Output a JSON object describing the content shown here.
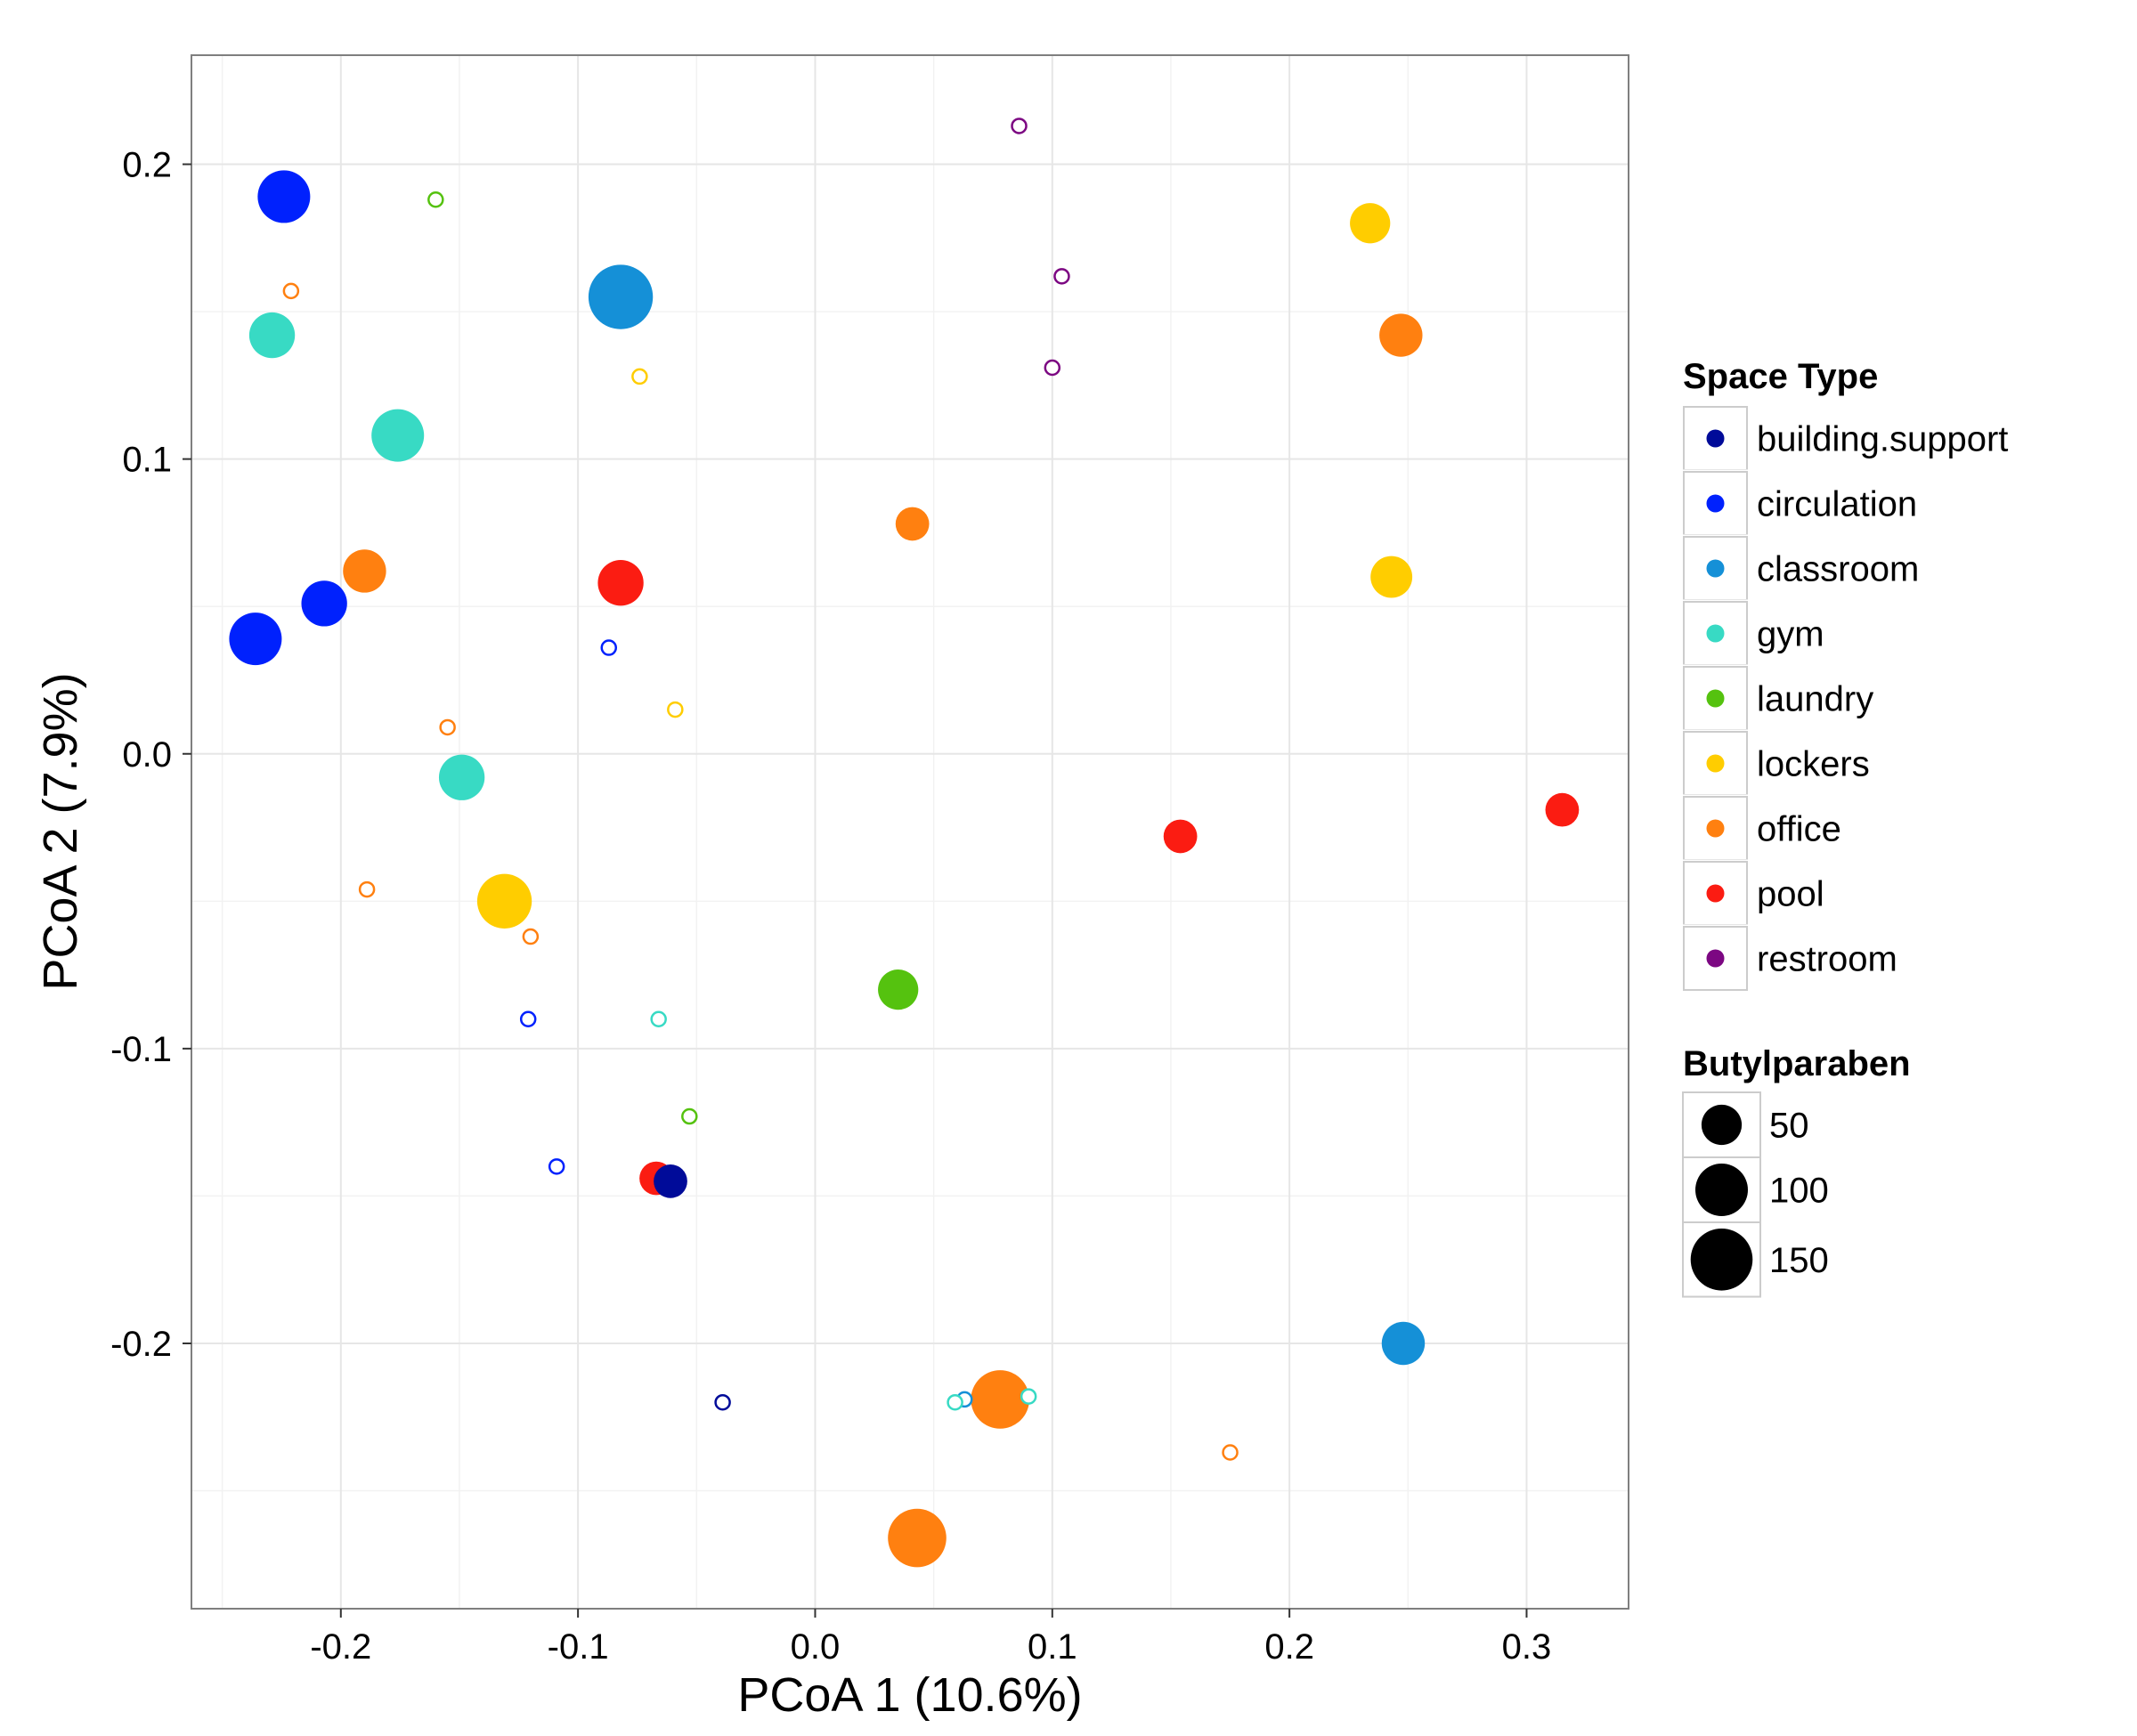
{
  "chart_data": {
    "type": "scatter",
    "xlabel": "PCoA 1 (10.6%)",
    "ylabel": "PCoA 2 (7.9%)",
    "xlim": [
      -0.263,
      0.343
    ],
    "ylim": [
      -0.29,
      0.237
    ],
    "x_ticks": [
      -0.2,
      -0.1,
      0.0,
      0.1,
      0.2,
      0.3
    ],
    "x_tick_labels": [
      "-0.2",
      "-0.1",
      "0.0",
      "0.1",
      "0.2",
      "0.3"
    ],
    "y_ticks": [
      -0.2,
      -0.1,
      0.0,
      0.1,
      0.2
    ],
    "y_tick_labels": [
      "-0.2",
      "-0.1",
      "0.0",
      "0.1",
      "0.2"
    ],
    "grid": true,
    "background": "#ffffff",
    "grid_color": "#e6e6e6",
    "legend_position": "right",
    "color_legend": {
      "title": "Space Type",
      "entries": [
        {
          "label": "building.support",
          "color": "#000b99"
        },
        {
          "label": "circulation",
          "color": "#0021fd"
        },
        {
          "label": "classroom",
          "color": "#1590d7"
        },
        {
          "label": "gym",
          "color": "#38dac4"
        },
        {
          "label": "laundry",
          "color": "#55c20f"
        },
        {
          "label": "lockers",
          "color": "#ffcd00"
        },
        {
          "label": "office",
          "color": "#ff8010"
        },
        {
          "label": "pool",
          "color": "#fb1c12"
        },
        {
          "label": "restroom",
          "color": "#7c0782"
        }
      ]
    },
    "size_legend": {
      "title": "Butylparaben",
      "entries": [
        {
          "label": "50",
          "value": 50
        },
        {
          "label": "100",
          "value": 100
        },
        {
          "label": "150",
          "value": 150
        }
      ]
    },
    "points": [
      {
        "x": -0.224,
        "y": 0.189,
        "type": "circulation",
        "size": 100,
        "filled": true
      },
      {
        "x": -0.236,
        "y": 0.039,
        "type": "circulation",
        "size": 100,
        "filled": true
      },
      {
        "x": -0.207,
        "y": 0.051,
        "type": "circulation",
        "size": 70,
        "filled": true
      },
      {
        "x": -0.087,
        "y": 0.036,
        "type": "circulation",
        "size": 0,
        "filled": false
      },
      {
        "x": -0.121,
        "y": -0.09,
        "type": "circulation",
        "size": 0,
        "filled": false
      },
      {
        "x": -0.109,
        "y": -0.14,
        "type": "circulation",
        "size": 0,
        "filled": false
      },
      {
        "x": -0.082,
        "y": 0.155,
        "type": "classroom",
        "size": 165,
        "filled": true
      },
      {
        "x": 0.248,
        "y": -0.2,
        "type": "classroom",
        "size": 60,
        "filled": true
      },
      {
        "x": 0.063,
        "y": -0.219,
        "type": "classroom",
        "size": 0,
        "filled": false
      },
      {
        "x": -0.229,
        "y": 0.142,
        "type": "gym",
        "size": 70,
        "filled": true
      },
      {
        "x": -0.176,
        "y": 0.108,
        "type": "gym",
        "size": 100,
        "filled": true
      },
      {
        "x": -0.149,
        "y": -0.008,
        "type": "gym",
        "size": 70,
        "filled": true
      },
      {
        "x": -0.066,
        "y": -0.09,
        "type": "gym",
        "size": 0,
        "filled": false
      },
      {
        "x": 0.059,
        "y": -0.22,
        "type": "gym",
        "size": 0,
        "filled": false
      },
      {
        "x": 0.09,
        "y": -0.218,
        "type": "gym",
        "size": 0,
        "filled": false
      },
      {
        "x": -0.16,
        "y": 0.188,
        "type": "laundry",
        "size": 0,
        "filled": false
      },
      {
        "x": 0.035,
        "y": -0.08,
        "type": "laundry",
        "size": 50,
        "filled": true
      },
      {
        "x": -0.053,
        "y": -0.123,
        "type": "laundry",
        "size": 0,
        "filled": false
      },
      {
        "x": -0.074,
        "y": 0.128,
        "type": "lockers",
        "size": 0,
        "filled": false
      },
      {
        "x": -0.059,
        "y": 0.015,
        "type": "lockers",
        "size": 0,
        "filled": false
      },
      {
        "x": -0.131,
        "y": -0.05,
        "type": "lockers",
        "size": 110,
        "filled": true
      },
      {
        "x": 0.234,
        "y": 0.18,
        "type": "lockers",
        "size": 50,
        "filled": true
      },
      {
        "x": 0.243,
        "y": 0.06,
        "type": "lockers",
        "size": 55,
        "filled": true
      },
      {
        "x": -0.221,
        "y": 0.157,
        "type": "office",
        "size": 0,
        "filled": false
      },
      {
        "x": -0.19,
        "y": 0.062,
        "type": "office",
        "size": 60,
        "filled": true
      },
      {
        "x": -0.155,
        "y": 0.009,
        "type": "office",
        "size": 0,
        "filled": false
      },
      {
        "x": -0.189,
        "y": -0.046,
        "type": "office",
        "size": 0,
        "filled": false
      },
      {
        "x": -0.12,
        "y": -0.062,
        "type": "office",
        "size": 0,
        "filled": false
      },
      {
        "x": 0.041,
        "y": 0.078,
        "type": "office",
        "size": 30,
        "filled": true
      },
      {
        "x": 0.247,
        "y": 0.142,
        "type": "office",
        "size": 60,
        "filled": true
      },
      {
        "x": 0.078,
        "y": -0.219,
        "type": "office",
        "size": 130,
        "filled": true
      },
      {
        "x": 0.043,
        "y": -0.266,
        "type": "office",
        "size": 130,
        "filled": true
      },
      {
        "x": 0.175,
        "y": -0.237,
        "type": "office",
        "size": 0,
        "filled": false
      },
      {
        "x": -0.082,
        "y": 0.058,
        "type": "pool",
        "size": 70,
        "filled": true
      },
      {
        "x": 0.154,
        "y": -0.028,
        "type": "pool",
        "size": 30,
        "filled": true
      },
      {
        "x": 0.315,
        "y": -0.019,
        "type": "pool",
        "size": 30,
        "filled": true
      },
      {
        "x": -0.067,
        "y": -0.144,
        "type": "pool",
        "size": 30,
        "filled": true
      },
      {
        "x": -0.061,
        "y": -0.145,
        "type": "building.support",
        "size": 30,
        "filled": true
      },
      {
        "x": -0.039,
        "y": -0.22,
        "type": "building.support",
        "size": 0,
        "filled": false
      },
      {
        "x": 0.086,
        "y": 0.213,
        "type": "restroom",
        "size": 0,
        "filled": false
      },
      {
        "x": 0.104,
        "y": 0.162,
        "type": "restroom",
        "size": 0,
        "filled": false
      },
      {
        "x": 0.1,
        "y": 0.131,
        "type": "restroom",
        "size": 0,
        "filled": false
      }
    ]
  }
}
